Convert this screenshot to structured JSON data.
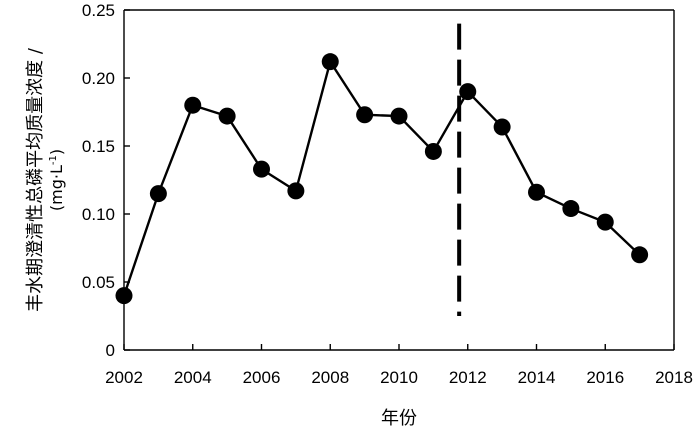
{
  "chart_data": {
    "type": "line",
    "title": "",
    "xlabel": "年份",
    "ylabel_main": "丰水期澄清性总磷平均质量浓度 /",
    "ylabel_unit_prefix": "(mg",
    "ylabel_unit_mid": "·L",
    "ylabel_unit_sup": "-1",
    "ylabel_unit_suffix": ")",
    "xlim": [
      2002,
      2018
    ],
    "ylim": [
      0,
      0.25
    ],
    "x_ticks": [
      2002,
      2004,
      2006,
      2008,
      2010,
      2012,
      2014,
      2016,
      2018
    ],
    "x_tick_labels": [
      "2002",
      "2004",
      "2006",
      "2008",
      "2010",
      "2012",
      "2014",
      "2016",
      "2018"
    ],
    "y_ticks": [
      0,
      0.05,
      0.1,
      0.15,
      0.2,
      0.25
    ],
    "y_tick_labels": [
      "0",
      "0.05",
      "0.10",
      "0.15",
      "0.20",
      "0.25"
    ],
    "series": [
      {
        "x": [
          2002,
          2003,
          2004,
          2005,
          2006,
          2007,
          2008,
          2009,
          2010,
          2011,
          2012,
          2013,
          2014,
          2015,
          2016,
          2017
        ],
        "values": [
          0.04,
          0.115,
          0.18,
          0.172,
          0.133,
          0.117,
          0.212,
          0.173,
          0.172,
          0.146,
          0.19,
          0.164,
          0.116,
          0.104,
          0.094,
          0.07
        ]
      }
    ],
    "reference_line": {
      "x": 2011.75,
      "y_range": [
        0.025,
        0.24
      ],
      "style": "dashed"
    },
    "grid": false
  }
}
